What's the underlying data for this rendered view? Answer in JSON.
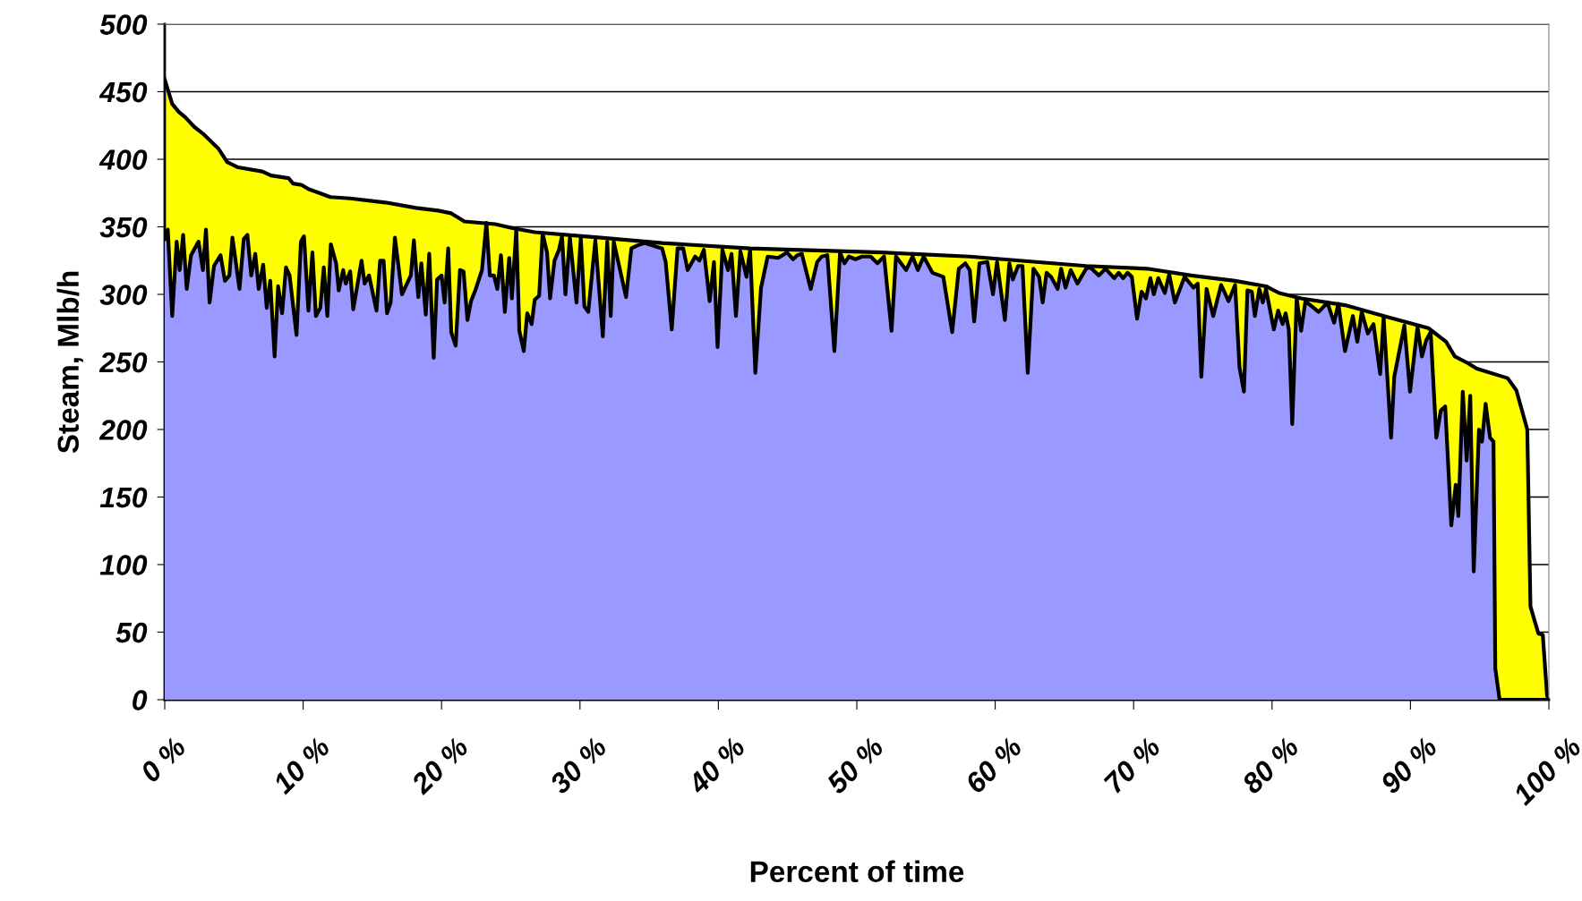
{
  "chart_data": {
    "type": "area",
    "xlabel": "Percent of time",
    "ylabel": "Steam, Mlb/h",
    "xlim": [
      0,
      100
    ],
    "xticks": [
      {
        "value": 0,
        "label": "0 %"
      },
      {
        "value": 10,
        "label": "10 %"
      },
      {
        "value": 20,
        "label": "20 %"
      },
      {
        "value": 30,
        "label": "30 %"
      },
      {
        "value": 40,
        "label": "40 %"
      },
      {
        "value": 50,
        "label": "50 %"
      },
      {
        "value": 60,
        "label": "60 %"
      },
      {
        "value": 70,
        "label": "70 %"
      },
      {
        "value": 80,
        "label": "80 %"
      },
      {
        "value": 90,
        "label": "90 %"
      },
      {
        "value": 100,
        "label": "100 %"
      }
    ],
    "ylim": [
      0,
      500
    ],
    "yticks": [
      0,
      50,
      100,
      150,
      200,
      250,
      300,
      350,
      400,
      450,
      500
    ],
    "grid": "y",
    "legend": false,
    "series": [
      {
        "color": "#ffff00",
        "x": [
          0,
          0.54,
          1.02,
          1.49,
          2.13,
          2.76,
          3.87,
          4.51,
          5.3,
          7.05,
          7.68,
          8.95,
          9.27,
          9.9,
          10.38,
          11.97,
          13.4,
          15.94,
          18.16,
          19.75,
          20.7,
          21.65,
          23.87,
          25.14,
          26.73,
          31.49,
          35.94,
          42.29,
          51.81,
          58.16,
          66.57,
          70.98,
          74.16,
          77.33,
          79.56,
          80.51,
          82.1,
          85.27,
          88.44,
          91.3,
          92.57,
          93.21,
          94.16,
          94.79,
          97.02,
          97.65,
          98.44,
          98.67,
          99.24,
          99.56,
          99.87,
          100
        ],
        "values": [
          459,
          441,
          435,
          431,
          424,
          419,
          408,
          398,
          394,
          391,
          388,
          386,
          382,
          381,
          378,
          372,
          371,
          368,
          364,
          362,
          360,
          354,
          352,
          349,
          346,
          342,
          338,
          334,
          331,
          328,
          321,
          319,
          314,
          310,
          306,
          301,
          297,
          292,
          283,
          275,
          265,
          254,
          249,
          245,
          238,
          229,
          200,
          69,
          49,
          48,
          3,
          0
        ]
      },
      {
        "color": "#9999ff",
        "x": [
          0,
          0.22,
          0.54,
          0.86,
          1.08,
          1.33,
          1.59,
          1.9,
          2.44,
          2.76,
          2.98,
          3.24,
          3.56,
          4.03,
          4.35,
          4.67,
          4.89,
          5.4,
          5.71,
          5.97,
          6.25,
          6.54,
          6.79,
          7.11,
          7.37,
          7.62,
          7.94,
          8.19,
          8.48,
          8.76,
          9.02,
          9.52,
          9.84,
          10.06,
          10.38,
          10.67,
          10.92,
          11.24,
          11.49,
          11.75,
          12.0,
          12.38,
          12.57,
          12.89,
          13.08,
          13.4,
          13.62,
          14.22,
          14.44,
          14.76,
          15.3,
          15.56,
          15.81,
          16.06,
          16.32,
          16.63,
          17.14,
          17.78,
          18.0,
          18.32,
          18.54,
          18.86,
          19.11,
          19.43,
          19.68,
          20.0,
          20.22,
          20.48,
          20.7,
          21.02,
          21.33,
          21.59,
          21.87,
          22.13,
          22.44,
          22.92,
          23.24,
          23.49,
          23.78,
          24.03,
          24.29,
          24.57,
          24.89,
          25.08,
          25.4,
          25.62,
          25.94,
          26.19,
          26.51,
          26.73,
          27.05,
          27.3,
          27.62,
          27.84,
          28.16,
          28.48,
          28.7,
          28.95,
          29.27,
          29.75,
          30.06,
          30.32,
          30.6,
          31.11,
          31.65,
          31.97,
          32.22,
          32.44,
          33.33,
          33.71,
          34.1,
          34.67,
          35.94,
          36.19,
          36.63,
          37.05,
          37.46,
          37.78,
          38.32,
          38.63,
          38.95,
          39.37,
          39.68,
          39.94,
          40.29,
          40.7,
          40.95,
          41.27,
          41.59,
          42.03,
          42.29,
          42.67,
          43.08,
          43.56,
          44.32,
          44.95,
          45.4,
          45.71,
          46.03,
          46.67,
          47.14,
          47.46,
          47.87,
          48.38,
          48.79,
          49.11,
          49.43,
          49.9,
          50.38,
          51.0,
          51.49,
          51.97,
          52.51,
          52.83,
          53.56,
          54.03,
          54.41,
          54.83,
          55.46,
          56.25,
          56.89,
          57.37,
          57.84,
          58.16,
          58.48,
          58.86,
          59.43,
          59.84,
          60.13,
          60.7,
          61.02,
          61.27,
          61.65,
          61.97,
          62.35,
          62.76,
          63.17,
          63.43,
          63.71,
          64.03,
          64.51,
          64.76,
          65.08,
          65.46,
          65.94,
          66.57,
          66.86,
          67.49,
          67.97,
          68.6,
          68.92,
          69.24,
          69.56,
          69.87,
          70.25,
          70.57,
          70.89,
          71.21,
          71.46,
          71.78,
          72.25,
          72.57,
          72.98,
          73.68,
          74.32,
          74.63,
          74.89,
          75.27,
          75.75,
          76.32,
          76.86,
          77.33,
          77.65,
          77.97,
          78.22,
          78.54,
          78.76,
          79.08,
          79.33,
          79.56,
          80.13,
          80.44,
          80.76,
          80.98,
          81.21,
          81.46,
          81.78,
          82.1,
          82.41,
          83.37,
          84.0,
          84.48,
          84.79,
          85.27,
          85.84,
          86.16,
          86.48,
          86.92,
          87.33,
          87.81,
          88.06,
          88.6,
          88.83,
          89.56,
          89.97,
          90.51,
          90.83,
          91.14,
          91.46,
          91.87,
          92.19,
          92.51,
          92.95,
          93.27,
          93.46,
          93.78,
          94.06,
          94.32,
          94.57,
          94.95,
          95.17,
          95.43,
          95.75,
          96.0,
          96.13,
          96.44,
          100
        ],
        "values": [
          341,
          348,
          284,
          339,
          318,
          344,
          304,
          329,
          339,
          318,
          348,
          294,
          321,
          329,
          310,
          314,
          342,
          304,
          341,
          344,
          314,
          330,
          304,
          322,
          290,
          310,
          254,
          306,
          286,
          320,
          314,
          270,
          339,
          343,
          288,
          331,
          284,
          290,
          320,
          284,
          337,
          323,
          303,
          318,
          308,
          317,
          289,
          325,
          308,
          314,
          288,
          325,
          325,
          286,
          294,
          342,
          300,
          314,
          340,
          298,
          323,
          285,
          330,
          253,
          311,
          314,
          294,
          334,
          272,
          262,
          318,
          317,
          281,
          295,
          303,
          318,
          353,
          314,
          314,
          304,
          329,
          287,
          327,
          297,
          348,
          273,
          258,
          286,
          278,
          296,
          299,
          345,
          331,
          297,
          325,
          333,
          343,
          300,
          342,
          294,
          342,
          291,
          287,
          340,
          269,
          339,
          284,
          339,
          298,
          334,
          336,
          338,
          334,
          324,
          274,
          334,
          334,
          318,
          328,
          325,
          333,
          295,
          324,
          261,
          333,
          318,
          330,
          284,
          332,
          313,
          333,
          242,
          305,
          328,
          327,
          331,
          326,
          329,
          330,
          304,
          324,
          328,
          329,
          258,
          331,
          323,
          328,
          326,
          328,
          328,
          323,
          328,
          273,
          328,
          318,
          328,
          318,
          328,
          316,
          313,
          272,
          319,
          323,
          318,
          280,
          323,
          324,
          300,
          324,
          281,
          323,
          311,
          321,
          321,
          242,
          319,
          313,
          294,
          316,
          313,
          304,
          319,
          305,
          318,
          308,
          319,
          320,
          314,
          319,
          312,
          316,
          312,
          316,
          313,
          282,
          302,
          297,
          312,
          300,
          312,
          301,
          315,
          294,
          313,
          305,
          308,
          239,
          304,
          284,
          307,
          295,
          307,
          246,
          228,
          303,
          302,
          284,
          304,
          294,
          304,
          274,
          288,
          278,
          286,
          274,
          204,
          297,
          273,
          295,
          287,
          294,
          279,
          293,
          258,
          284,
          265,
          287,
          271,
          278,
          241,
          283,
          194,
          239,
          277,
          228,
          276,
          254,
          266,
          272,
          194,
          214,
          217,
          129,
          159,
          136,
          228,
          177,
          225,
          95,
          200,
          191,
          219,
          194,
          191,
          23,
          0,
          0
        ]
      }
    ]
  }
}
